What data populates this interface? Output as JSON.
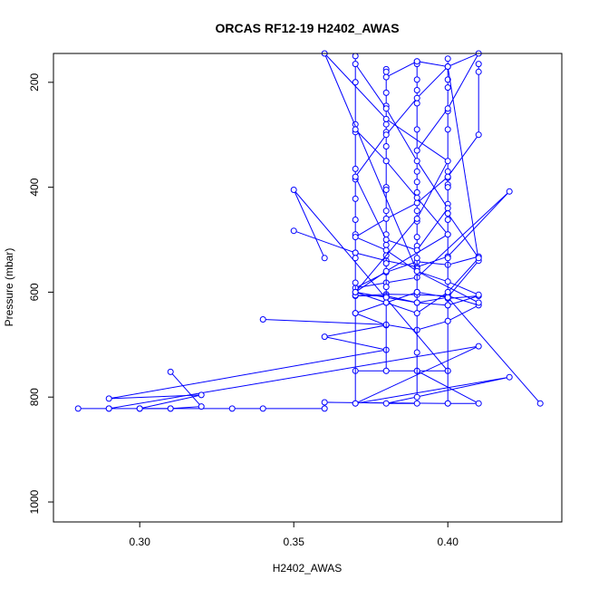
{
  "chart_data": {
    "type": "line",
    "title": "ORCAS RF12-19 H2402_AWAS",
    "xlabel": "H2402_AWAS",
    "ylabel": "Pressure (mbar)",
    "xlim": [
      0.272,
      0.437
    ],
    "ylim": [
      1038,
      145
    ],
    "y_reversed": true,
    "grid": false,
    "xticks": [
      {
        "value": 0.3,
        "label": "0.30"
      },
      {
        "value": 0.35,
        "label": "0.35"
      },
      {
        "value": 0.4,
        "label": "0.40"
      }
    ],
    "yticks": [
      {
        "value": 200,
        "label": "200"
      },
      {
        "value": 400,
        "label": "400"
      },
      {
        "value": 600,
        "label": "600"
      },
      {
        "value": 800,
        "label": "800"
      },
      {
        "value": 1000,
        "label": "1000"
      }
    ],
    "color": "#0000ff",
    "marker": "open-circle",
    "series": [
      {
        "x": [
          0.28,
          0.29,
          0.3,
          0.31,
          0.33,
          0.34,
          0.36,
          0.3,
          0.29,
          0.41,
          0.37,
          0.42,
          0.38,
          0.39,
          0.36,
          0.4,
          0.41,
          0.39,
          0.38,
          0.4,
          0.39,
          0.37,
          0.4,
          0.35,
          0.36
        ],
        "y": [
          822,
          822,
          822,
          822,
          822,
          822,
          822,
          822,
          822,
          703,
          812,
          762,
          812,
          812,
          810,
          812,
          812,
          750,
          750,
          750,
          750,
          750,
          750,
          405,
          535
        ]
      },
      {
        "x": [
          0.31,
          0.32,
          0.31,
          0.3,
          0.32,
          0.29,
          0.38,
          0.36,
          0.38,
          0.37,
          0.38,
          0.39,
          0.4,
          0.43
        ],
        "y": [
          752,
          818,
          822,
          822,
          796,
          803,
          710,
          685,
          663,
          640,
          620,
          600,
          610,
          812
        ]
      },
      {
        "x": [
          0.34,
          0.38,
          0.39,
          0.4,
          0.41,
          0.4,
          0.39,
          0.38,
          0.37,
          0.38,
          0.39,
          0.4,
          0.41,
          0.4
        ],
        "y": [
          652,
          662,
          672,
          655,
          625,
          607,
          605,
          604,
          607,
          607,
          620,
          625,
          607,
          612
        ]
      },
      {
        "x": [
          0.35,
          0.37,
          0.38,
          0.39,
          0.4,
          0.42,
          0.39,
          0.38,
          0.37,
          0.38,
          0.39,
          0.4,
          0.41
        ],
        "y": [
          483,
          525,
          540,
          552,
          532,
          408,
          572,
          582,
          592,
          562,
          542,
          548,
          532
        ]
      },
      {
        "x": [
          0.37,
          0.37,
          0.37,
          0.37,
          0.37,
          0.37,
          0.37,
          0.37,
          0.37,
          0.37,
          0.37,
          0.37,
          0.37,
          0.37,
          0.37,
          0.37
        ],
        "y": [
          150,
          200,
          280,
          295,
          365,
          385,
          422,
          462,
          490,
          525,
          535,
          582,
          606,
          640,
          812,
          200
        ]
      },
      {
        "x": [
          0.38,
          0.38,
          0.38,
          0.38,
          0.38,
          0.38,
          0.38,
          0.38,
          0.38,
          0.38,
          0.38,
          0.38,
          0.38,
          0.38,
          0.38,
          0.38,
          0.38,
          0.38
        ],
        "y": [
          175,
          180,
          220,
          245,
          280,
          295,
          322,
          350,
          400,
          405,
          445,
          490,
          510,
          530,
          545,
          590,
          610,
          750
        ]
      },
      {
        "x": [
          0.39,
          0.39,
          0.39,
          0.39,
          0.39,
          0.39,
          0.39,
          0.39,
          0.39,
          0.39,
          0.39,
          0.39,
          0.39,
          0.39,
          0.39,
          0.39,
          0.39,
          0.39
        ],
        "y": [
          160,
          165,
          195,
          215,
          240,
          290,
          370,
          390,
          410,
          445,
          465,
          495,
          512,
          535,
          555,
          600,
          715,
          800
        ]
      },
      {
        "x": [
          0.4,
          0.4,
          0.4,
          0.4,
          0.4,
          0.4,
          0.4,
          0.4,
          0.4,
          0.4,
          0.4,
          0.4,
          0.4,
          0.4,
          0.4,
          0.4,
          0.4
        ],
        "y": [
          155,
          195,
          210,
          255,
          290,
          370,
          382,
          395,
          400,
          432,
          462,
          490,
          535,
          605,
          625,
          655,
          812
        ]
      },
      {
        "x": [
          0.41,
          0.41,
          0.41,
          0.4,
          0.39,
          0.38,
          0.37,
          0.38,
          0.39,
          0.4,
          0.41
        ],
        "y": [
          165,
          180,
          300,
          380,
          430,
          460,
          495,
          520,
          560,
          580,
          605
        ]
      },
      {
        "x": [
          0.37,
          0.38,
          0.39,
          0.4,
          0.39,
          0.38,
          0.37,
          0.38,
          0.39,
          0.4,
          0.41,
          0.4,
          0.39
        ],
        "y": [
          165,
          250,
          350,
          440,
          520,
          500,
          380,
          300,
          230,
          170,
          145,
          250,
          330
        ]
      },
      {
        "x": [
          0.38,
          0.39,
          0.4,
          0.41,
          0.4,
          0.39,
          0.38,
          0.37,
          0.38,
          0.39,
          0.4,
          0.41,
          0.4
        ],
        "y": [
          190,
          160,
          170,
          540,
          610,
          620,
          610,
          600,
          620,
          640,
          600,
          535,
          450
        ]
      },
      {
        "x": [
          0.37,
          0.38,
          0.39,
          0.4,
          0.38,
          0.37,
          0.39,
          0.4,
          0.38,
          0.36,
          0.39,
          0.41
        ],
        "y": [
          290,
          350,
          420,
          490,
          560,
          600,
          460,
          350,
          270,
          145,
          560,
          620
        ]
      }
    ]
  }
}
